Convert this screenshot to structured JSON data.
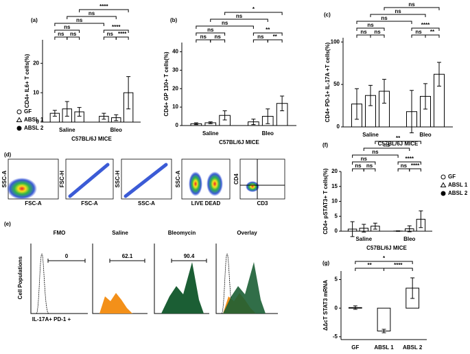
{
  "chart_data": [
    {
      "type": "grouped-bar",
      "panel_label": "(a)",
      "y_label": "CD4+ IL6+ T cells(%)",
      "x_label": "C57BL/6J MICE",
      "categories": [
        "Saline",
        "Bleo"
      ],
      "series": [
        {
          "name": "GF",
          "marker": "circle-open",
          "color": "#000000",
          "values": [
            3,
            2
          ],
          "errors": [
            1,
            1
          ]
        },
        {
          "name": "ABSL 1",
          "marker": "triangle-open",
          "color": "#000000",
          "values": [
            4.5,
            1.5
          ],
          "errors": [
            2.5,
            1
          ]
        },
        {
          "name": "ABSL 2",
          "marker": "circle",
          "color": "#000000",
          "values": [
            3.5,
            10
          ],
          "errors": [
            1.5,
            5.5
          ]
        }
      ],
      "ylim": [
        0,
        28
      ],
      "yticks": [
        0,
        10,
        20
      ],
      "legend": "left",
      "annotations": [
        "ns",
        "ns",
        "ns",
        "ns",
        "****",
        "****",
        "ns",
        "ns",
        "****"
      ]
    },
    {
      "type": "grouped-bar",
      "panel_label": "(b)",
      "y_label": "CD4+ GP 130+ T cells(%)",
      "x_label": "C57BL/6J MICE",
      "categories": [
        "Saline",
        "Bleo"
      ],
      "series": [
        {
          "name": "GF",
          "marker": "circle-open",
          "color": "#000000",
          "values": [
            1,
            2
          ],
          "errors": [
            0.5,
            1.5
          ]
        },
        {
          "name": "ABSL 1",
          "marker": "triangle-open",
          "color": "#000000",
          "values": [
            1.5,
            5
          ],
          "errors": [
            0.5,
            4
          ]
        },
        {
          "name": "ABSL 2",
          "marker": "circle",
          "color": "#000000",
          "values": [
            5.5,
            12
          ],
          "errors": [
            2.5,
            4
          ]
        }
      ],
      "ylim": [
        0,
        45
      ],
      "yticks": [
        0,
        10,
        20,
        30,
        40
      ],
      "annotations": [
        "ns",
        "ns",
        "ns",
        "ns",
        "**",
        "**",
        "ns",
        "ns",
        "*"
      ]
    },
    {
      "type": "grouped-bar",
      "panel_label": "(c)",
      "y_label": "CD4+ PD-1+ IL-17A +T cells(%)",
      "x_label": "C57BL/6J MICE",
      "categories": [
        "Saline",
        "Bleo"
      ],
      "series": [
        {
          "name": "GF",
          "marker": "circle-open",
          "color": "#000000",
          "values": [
            27,
            18
          ],
          "errors": [
            18,
            25
          ]
        },
        {
          "name": "ABSL 1",
          "marker": "triangle-open",
          "color": "#000000",
          "values": [
            37,
            36
          ],
          "errors": [
            12,
            15
          ]
        },
        {
          "name": "ABSL 2",
          "marker": "circle",
          "color": "#000000",
          "values": [
            42,
            62
          ],
          "errors": [
            14,
            14
          ]
        }
      ],
      "ylim": [
        0,
        105
      ],
      "yticks": [
        0,
        50,
        100
      ],
      "annotations": [
        "ns",
        "ns",
        "ns",
        "ns",
        "**",
        "****",
        "ns",
        "ns",
        "ns"
      ]
    },
    {
      "type": "grouped-bar",
      "panel_label": "(f)",
      "y_label": "CD4+ pSTAT3+ T cells(%)",
      "x_label": "C57BL/6J MICE",
      "categories": [
        "Saline",
        "Bleo"
      ],
      "series": [
        {
          "name": "GF",
          "marker": "circle-open",
          "color": "#000000",
          "values": [
            0.7,
            0.05
          ],
          "errors": [
            2.5,
            0.1
          ]
        },
        {
          "name": "ABSL 1",
          "marker": "triangle-open",
          "color": "#000000",
          "values": [
            1,
            0.8
          ],
          "errors": [
            1.3,
            1
          ]
        },
        {
          "name": "ABSL 2",
          "marker": "circle",
          "color": "#000000",
          "values": [
            1.7,
            4
          ],
          "errors": [
            1,
            2.8
          ]
        }
      ],
      "ylim": [
        0,
        20
      ],
      "yticks": [
        0,
        5,
        10,
        15,
        20
      ],
      "legend": "right",
      "annotations": [
        "ns",
        "ns",
        "ns",
        "ns",
        "****",
        "****",
        "ns",
        "ns",
        "**"
      ]
    },
    {
      "type": "bar",
      "panel_label": "(g)",
      "y_label": "ΔΔcT STAT3 mRNA",
      "categories": [
        "GF",
        "ABSL 1",
        "ABSL 2"
      ],
      "values": [
        0.1,
        -4,
        3.5
      ],
      "errors": [
        0.3,
        0.3,
        1.8
      ],
      "color": "#000000",
      "ylim": [
        -5.5,
        6.5
      ],
      "yticks": [
        -5,
        0,
        5
      ],
      "annotations": [
        "**",
        "****",
        "*"
      ]
    }
  ],
  "flow_cytometry": {
    "panel_d": {
      "label": "(d)",
      "plots": [
        {
          "y": "SSC-A",
          "x": "FSC-A"
        },
        {
          "y": "FSC-H",
          "x": "FSC-A"
        },
        {
          "y": "SSC-H",
          "x": "SSC-A"
        },
        {
          "y": "SSC-A",
          "x": "LIVE DEAD"
        },
        {
          "y": "CD4",
          "x": "CD3"
        }
      ]
    },
    "panel_e": {
      "label": "(e)",
      "y_label": "Cell Populations",
      "x_label": "IL-17A+ PD-1 +",
      "titles": [
        "FMO",
        "Saline",
        "Bleomycin",
        "Overlay"
      ],
      "gate_values": [
        0,
        62.1,
        90.4
      ]
    }
  }
}
